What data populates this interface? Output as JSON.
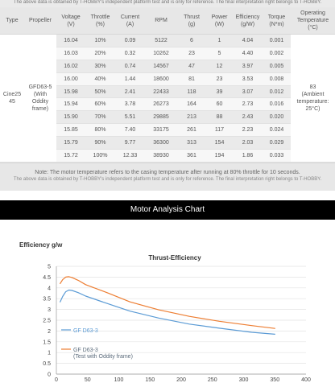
{
  "top_note": "The above data is obtained by T-HOBBY's independent platform test and is only for reference. The final interpretation right belongs to T-HOBBY.",
  "table": {
    "headers": [
      [
        "Type"
      ],
      [
        "Propeller"
      ],
      [
        "Voltage",
        "(V)"
      ],
      [
        "Throttle",
        "(%)"
      ],
      [
        "Current",
        "(A)"
      ],
      [
        "RPM"
      ],
      [
        "Thrust",
        "(g)"
      ],
      [
        "Power",
        "(W)"
      ],
      [
        "Efficiency",
        "(g/W)"
      ],
      [
        "Torque",
        "(N*m)"
      ],
      [
        "Operating",
        "Temperature",
        "(°C)"
      ]
    ],
    "type": [
      "Cine25",
      "45"
    ],
    "propeller": [
      "GFD63-5",
      "(With",
      "Oddity",
      "frame)"
    ],
    "temperature": [
      "83",
      "(Ambient",
      "temperature:",
      "25°C)"
    ],
    "rows": [
      [
        "16.04",
        "10%",
        "0.09",
        "5122",
        "6",
        "1",
        "4.04",
        "0.001"
      ],
      [
        "16.03",
        "20%",
        "0.32",
        "10262",
        "23",
        "5",
        "4.40",
        "0.002"
      ],
      [
        "16.02",
        "30%",
        "0.74",
        "14567",
        "47",
        "12",
        "3.97",
        "0.005"
      ],
      [
        "16.00",
        "40%",
        "1.44",
        "18600",
        "81",
        "23",
        "3.53",
        "0.008"
      ],
      [
        "15.98",
        "50%",
        "2.41",
        "22433",
        "118",
        "39",
        "3.07",
        "0.012"
      ],
      [
        "15.94",
        "60%",
        "3.78",
        "26273",
        "164",
        "60",
        "2.73",
        "0.016"
      ],
      [
        "15.90",
        "70%",
        "5.51",
        "29885",
        "213",
        "88",
        "2.43",
        "0.020"
      ],
      [
        "15.85",
        "80%",
        "7.40",
        "33175",
        "261",
        "117",
        "2.23",
        "0.024"
      ],
      [
        "15.79",
        "90%",
        "9.77",
        "36300",
        "313",
        "154",
        "2.03",
        "0.029"
      ],
      [
        "15.72",
        "100%",
        "12.33",
        "38930",
        "361",
        "194",
        "1.86",
        "0.033"
      ]
    ]
  },
  "note_main": "Note: The motor temperature refers to the casing temperature after running at 80% throttle for 10 seconds.",
  "note_sub": "The above data is obtained by T-HOBBY's independent platform test and is only for reference. The final interpretation right belongs to T-HOBBY.",
  "section_title": "Motor Analysis Chart",
  "chart_data": {
    "type": "line",
    "title": "Thrust-Efficiency",
    "ylabel": "Efficiency g/w",
    "xlabel": "",
    "xlim": [
      0,
      400
    ],
    "ylim": [
      0,
      5
    ],
    "xticks": [
      0,
      50,
      100,
      150,
      200,
      250,
      300,
      350,
      400
    ],
    "yticks": [
      0,
      0.5,
      1,
      1.5,
      2,
      2.5,
      3,
      3.5,
      4,
      4.5,
      5
    ],
    "grid": "horizontal",
    "legend_position": "bottom-left",
    "series": [
      {
        "name": "GF D63-3",
        "color": "#5b9bd5",
        "points": [
          [
            6,
            3.35
          ],
          [
            10,
            3.6
          ],
          [
            15,
            3.82
          ],
          [
            20,
            3.9
          ],
          [
            25,
            3.88
          ],
          [
            35,
            3.78
          ],
          [
            47,
            3.62
          ],
          [
            81,
            3.28
          ],
          [
            118,
            2.92
          ],
          [
            164,
            2.6
          ],
          [
            213,
            2.32
          ],
          [
            261,
            2.13
          ],
          [
            313,
            1.94
          ],
          [
            350,
            1.85
          ]
        ]
      },
      {
        "name": "GF D63-3",
        "name_line2": "(Test with Oddity frame)",
        "color": "#ed7d31",
        "points": [
          [
            6,
            4.2
          ],
          [
            10,
            4.38
          ],
          [
            15,
            4.5
          ],
          [
            20,
            4.52
          ],
          [
            25,
            4.48
          ],
          [
            35,
            4.35
          ],
          [
            47,
            4.15
          ],
          [
            81,
            3.78
          ],
          [
            118,
            3.35
          ],
          [
            164,
            2.98
          ],
          [
            213,
            2.68
          ],
          [
            261,
            2.45
          ],
          [
            313,
            2.25
          ],
          [
            350,
            2.12
          ]
        ]
      }
    ]
  }
}
